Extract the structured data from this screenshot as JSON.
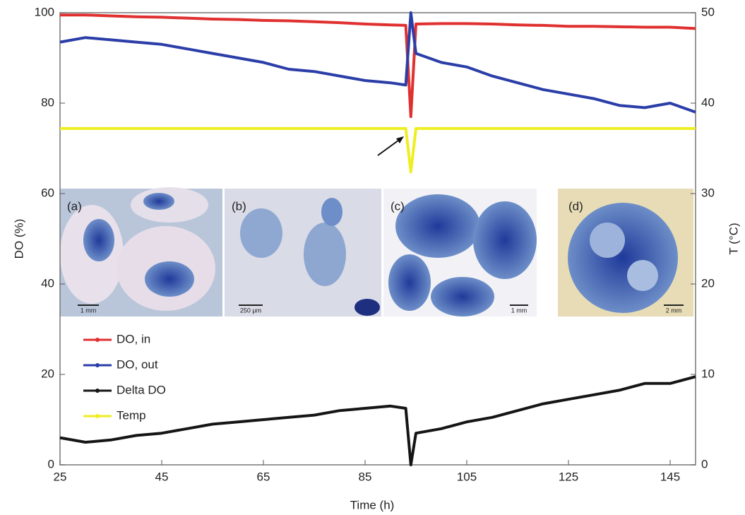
{
  "chart_data": {
    "type": "line",
    "xlabel": "Time (h)",
    "ylabel": "DO (%)",
    "y2label": "T (°C)",
    "x": [
      25,
      30,
      35,
      40,
      45,
      50,
      55,
      60,
      65,
      70,
      75,
      80,
      85,
      90,
      93,
      94,
      95,
      100,
      105,
      110,
      115,
      120,
      125,
      130,
      135,
      140,
      145,
      150
    ],
    "series": [
      {
        "name": "DO, in",
        "color": "#e03030",
        "values": [
          99.5,
          99.5,
          99.3,
          99.1,
          99,
          98.8,
          98.6,
          98.5,
          98.3,
          98.2,
          98,
          97.8,
          97.5,
          97.3,
          97.2,
          77,
          97.5,
          97.6,
          97.6,
          97.5,
          97.3,
          97.2,
          97,
          97,
          96.9,
          96.8,
          96.8,
          96.5
        ]
      },
      {
        "name": "DO, out",
        "color": "#2b3ea8",
        "values": [
          93.5,
          94.5,
          94,
          93.5,
          93,
          92,
          91,
          90,
          89,
          87.5,
          87,
          86,
          85,
          84.5,
          84,
          100,
          91,
          89,
          88,
          86,
          84.5,
          83,
          82,
          81,
          79.5,
          79,
          80,
          78
        ]
      },
      {
        "name": "Delta DO",
        "color": "#151515",
        "values": [
          6,
          5,
          5.5,
          6.5,
          7,
          8,
          9,
          9.5,
          10,
          10.5,
          11,
          12,
          12.5,
          13,
          12.5,
          0,
          7,
          8,
          9.5,
          10.5,
          12,
          13.5,
          14.5,
          15.5,
          16.5,
          18,
          18,
          19.5
        ]
      },
      {
        "name": "Temp",
        "color": "#eeee22",
        "axis": "y2",
        "values": [
          37.2,
          37.2,
          37.2,
          37.2,
          37.2,
          37.2,
          37.2,
          37.2,
          37.2,
          37.2,
          37.2,
          37.2,
          37.2,
          37.2,
          37.2,
          32.4,
          37.2,
          37.2,
          37.2,
          37.2,
          37.2,
          37.2,
          37.2,
          37.2,
          37.2,
          37.2,
          37.2,
          37.2
        ]
      }
    ],
    "xlim": [
      25,
      150
    ],
    "xticks": [
      25,
      45,
      65,
      85,
      105,
      125,
      145
    ],
    "ylim": [
      0,
      100
    ],
    "yticks": [
      0,
      20,
      40,
      60,
      80,
      100
    ],
    "y2lim": [
      0,
      50
    ],
    "y2ticks": [
      0,
      10,
      20,
      30,
      40,
      50
    ],
    "legend": "center left",
    "insets": [
      {
        "label": "(a)",
        "scale": "1 mm"
      },
      {
        "label": "(b)",
        "scale": "250 μm"
      },
      {
        "label": "(c)",
        "scale": "1 mm"
      },
      {
        "label": "(d)",
        "scale": "2 mm"
      }
    ]
  }
}
